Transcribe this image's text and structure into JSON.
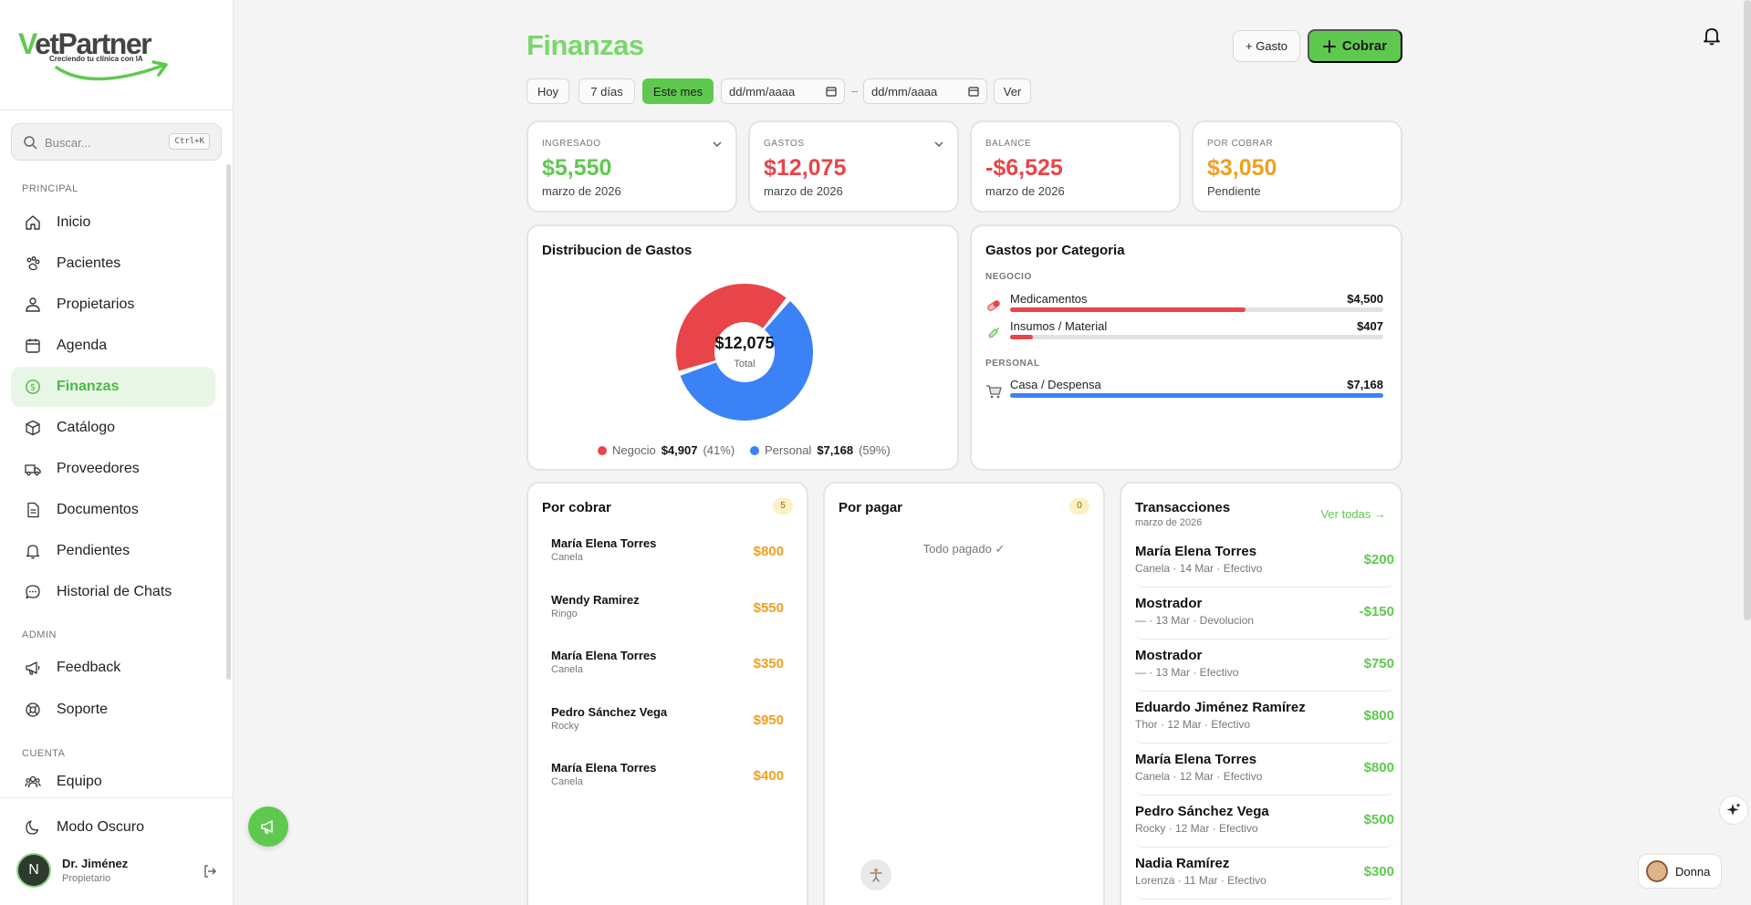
{
  "brand": {
    "logo_prefix": "V",
    "logo_rest": "etPartner",
    "tagline": "Creciendo tu clínica con IA"
  },
  "search": {
    "placeholder": "Buscar...",
    "shortcut": "Ctrl+K"
  },
  "sidebar": {
    "sections": {
      "principal": "PRINCIPAL",
      "admin": "ADMIN",
      "cuenta": "CUENTA"
    },
    "items": [
      {
        "label": "Inicio",
        "icon": "home-icon"
      },
      {
        "label": "Pacientes",
        "icon": "paw-icon"
      },
      {
        "label": "Propietarios",
        "icon": "user-icon"
      },
      {
        "label": "Agenda",
        "icon": "calendar-icon"
      },
      {
        "label": "Finanzas",
        "icon": "dollar-icon"
      },
      {
        "label": "Catálogo",
        "icon": "box-icon"
      },
      {
        "label": "Proveedores",
        "icon": "truck-icon"
      },
      {
        "label": "Documentos",
        "icon": "file-icon"
      },
      {
        "label": "Pendientes",
        "icon": "bell-icon"
      },
      {
        "label": "Historial de Chats",
        "icon": "chat-icon"
      },
      {
        "label": "Feedback",
        "icon": "megaphone-icon"
      },
      {
        "label": "Soporte",
        "icon": "lifebuoy-icon"
      },
      {
        "label": "Equipo",
        "icon": "users-icon"
      }
    ],
    "dark_mode_label": "Modo Oscuro",
    "user": {
      "initial": "N",
      "name": "Dr. Jiménez",
      "role": "Propietario"
    }
  },
  "header": {
    "title": "Finanzas",
    "gasto_button": "+ Gasto",
    "cobrar_button": "Cobrar"
  },
  "filters": {
    "hoy": "Hoy",
    "siete_dias": "7 días",
    "este_mes": "Este mes",
    "date_from": "dd/mm/aaaa",
    "date_sep": "–",
    "date_to": "dd/mm/aaaa",
    "ver": "Ver"
  },
  "stats": {
    "ingresado": {
      "label": "INGRESADO",
      "value": "$5,550",
      "sub": "marzo de 2026"
    },
    "gastos": {
      "label": "GASTOS",
      "value": "$12,075",
      "sub": "marzo de 2026"
    },
    "balance": {
      "label": "BALANCE",
      "value": "-$6,525",
      "sub": "marzo de 2026"
    },
    "por_cobrar": {
      "label": "POR COBRAR",
      "value": "$3,050",
      "sub": "Pendiente"
    }
  },
  "distribution": {
    "title": "Distribucion de Gastos",
    "center_value": "$12,075",
    "center_label": "Total",
    "slices": [
      {
        "name": "Negocio",
        "value": "$4,907",
        "pct": "(41%)",
        "fraction": 0.41,
        "color": "#e8454a"
      },
      {
        "name": "Personal",
        "value": "$7,168",
        "pct": "(59%)",
        "fraction": 0.59,
        "color": "#3b82f6"
      }
    ]
  },
  "categories": {
    "title": "Gastos por Categoria",
    "negocio_label": "NEGOCIO",
    "personal_label": "PERSONAL",
    "negocio": [
      {
        "name": "Medicamentos",
        "amount": "$4,500",
        "fraction": 0.63,
        "color": "#e8454a",
        "icon": "pill-icon"
      },
      {
        "name": "Insumos / Material",
        "amount": "$407",
        "fraction": 0.06,
        "color": "#e8454a",
        "icon": "syringe-icon"
      }
    ],
    "personal": [
      {
        "name": "Casa / Despensa",
        "amount": "$7,168",
        "fraction": 1.0,
        "color": "#3b82f6",
        "icon": "cart-icon"
      }
    ]
  },
  "por_cobrar": {
    "title": "Por cobrar",
    "count": "5",
    "items": [
      {
        "name": "María Elena Torres",
        "pet": "Canela",
        "amount": "$800"
      },
      {
        "name": "Wendy Ramirez",
        "pet": "Ringo",
        "amount": "$550"
      },
      {
        "name": "María Elena Torres",
        "pet": "Canela",
        "amount": "$350"
      },
      {
        "name": "Pedro Sánchez Vega",
        "pet": "Rocky",
        "amount": "$950"
      },
      {
        "name": "María Elena Torres",
        "pet": "Canela",
        "amount": "$400"
      }
    ]
  },
  "por_pagar": {
    "title": "Por pagar",
    "count": "0",
    "empty": "Todo pagado ✓"
  },
  "transacciones": {
    "title": "Transacciones",
    "date": "marzo de 2026",
    "link": "Ver todas →",
    "items": [
      {
        "name": "María Elena Torres",
        "sub": "Canela · 14 Mar · Efectivo",
        "amount": "$200"
      },
      {
        "name": "Mostrador",
        "sub": "— · 13 Mar · Devolucion",
        "amount": "-$150"
      },
      {
        "name": "Mostrador",
        "sub": "— · 13 Mar · Efectivo",
        "amount": "$750"
      },
      {
        "name": "Eduardo Jiménez Ramírez",
        "sub": "Thor · 12 Mar · Efectivo",
        "amount": "$800"
      },
      {
        "name": "María Elena Torres",
        "sub": "Canela · 12 Mar · Efectivo",
        "amount": "$800"
      },
      {
        "name": "Pedro Sánchez Vega",
        "sub": "Rocky · 12 Mar · Efectivo",
        "amount": "$500"
      },
      {
        "name": "Nadia Ramírez",
        "sub": "Lorenza · 11 Mar · Efectivo",
        "amount": "$300"
      }
    ]
  },
  "assistant": {
    "name": "Donna"
  },
  "colors": {
    "brand_green": "#5fc94f",
    "title_green": "#7bd66d",
    "income_green": "#5fc94f",
    "expense_red": "#e8454a",
    "pending_orange": "#f0a020",
    "personal_blue": "#3b82f6"
  }
}
